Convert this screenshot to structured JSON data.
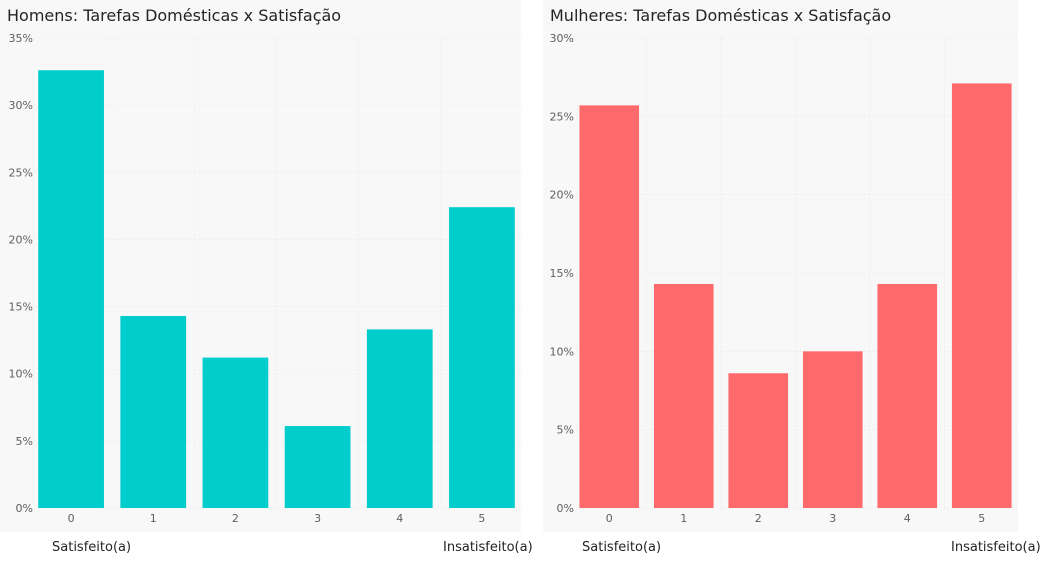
{
  "chart_data": [
    {
      "type": "bar",
      "title": "Homens: Tarefas Domésticas x Satisfação",
      "categories": [
        "0",
        "1",
        "2",
        "3",
        "4",
        "5"
      ],
      "values": [
        32.6,
        14.3,
        11.2,
        6.1,
        13.3,
        22.4
      ],
      "ylim": [
        0,
        35
      ],
      "yticks": [
        "0%",
        "5%",
        "10%",
        "15%",
        "20%",
        "25%",
        "30%",
        "35%"
      ],
      "ytick_values": [
        0,
        5,
        10,
        15,
        20,
        25,
        30,
        35
      ],
      "color": "#01cdcd",
      "grid": true,
      "left_label": "Satisfeito(a)",
      "right_label": "Insatisfeito(a)"
    },
    {
      "type": "bar",
      "title": "Mulheres: Tarefas Domésticas x Satisfação",
      "categories": [
        "0",
        "1",
        "2",
        "3",
        "4",
        "5"
      ],
      "values": [
        25.7,
        14.3,
        8.6,
        10.0,
        14.3,
        27.1
      ],
      "ylim": [
        0,
        30
      ],
      "yticks": [
        "0%",
        "5%",
        "10%",
        "15%",
        "20%",
        "25%",
        "30%"
      ],
      "ytick_values": [
        0,
        5,
        10,
        15,
        20,
        25,
        30
      ],
      "color": "#fe6a6b",
      "grid": true,
      "left_label": "Satisfeito(a)",
      "right_label": "Insatisfeito(a)"
    }
  ]
}
